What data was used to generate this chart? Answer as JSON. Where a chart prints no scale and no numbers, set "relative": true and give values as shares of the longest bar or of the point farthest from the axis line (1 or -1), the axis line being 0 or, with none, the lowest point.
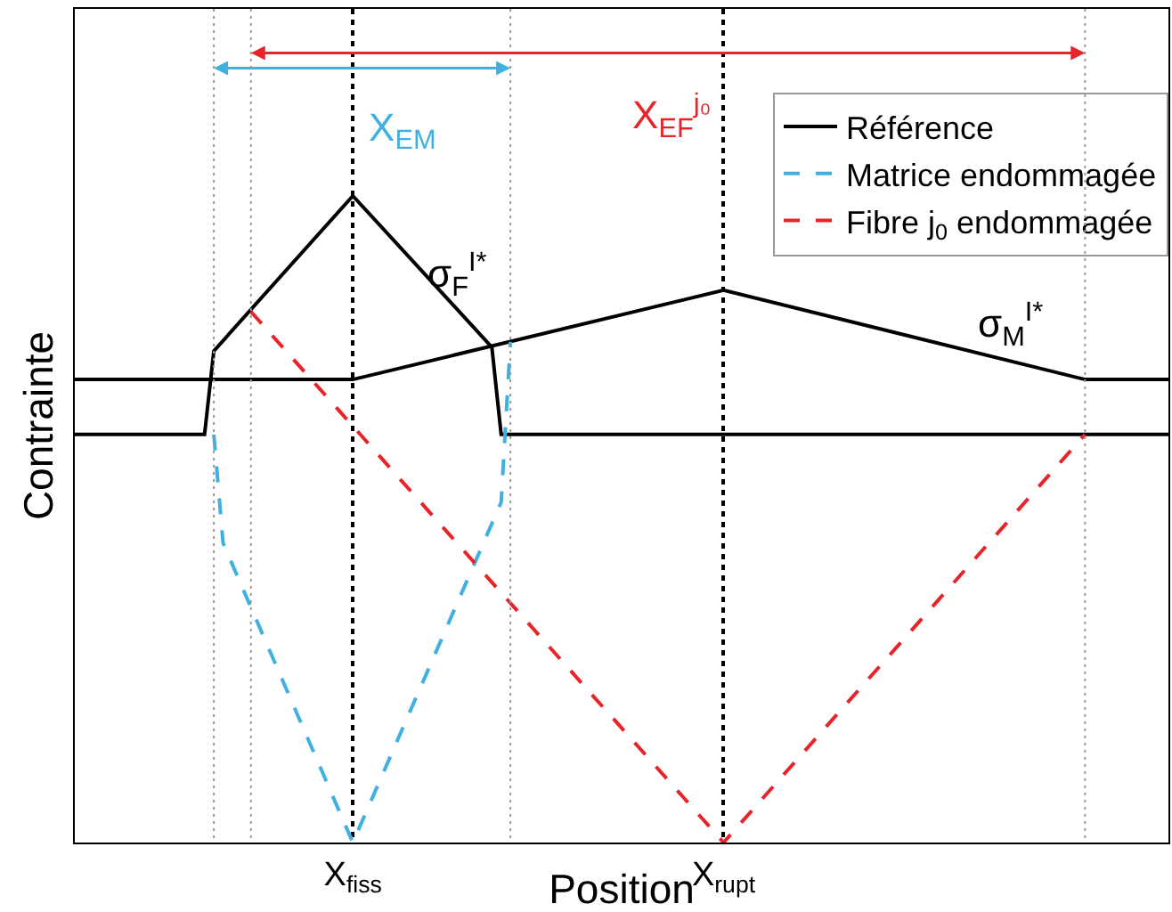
{
  "chart_data": {
    "type": "line",
    "relative": true,
    "xlabel": "Position",
    "ylabel": "Contrainte",
    "categories": [
      null,
      null,
      null,
      null,
      null,
      null,
      null,
      null,
      null,
      null,
      null,
      null,
      null,
      null,
      null,
      null,
      null,
      null,
      null,
      null,
      null,
      null,
      null,
      null,
      null,
      null,
      null,
      null,
      null,
      null,
      "X$_{fiss}$",
      null,
      null,
      null,
      null,
      null,
      null,
      null,
      null,
      null,
      null,
      null,
      null,
      null,
      null,
      null,
      null,
      null,
      null,
      null,
      null,
      null,
      null,
      null,
      null,
      null,
      null,
      null,
      null,
      null,
      null,
      null,
      null,
      null,
      null,
      null,
      null,
      null,
      null,
      null,
      "X$_{rupt}$",
      null,
      null,
      null,
      null,
      null,
      null,
      null,
      null,
      null,
      null,
      null,
      null,
      null,
      null,
      null,
      null,
      null,
      null,
      null,
      null,
      null,
      null,
      null,
      null,
      null,
      null,
      null,
      null,
      null,
      null,
      null,
      null,
      null,
      null,
      null,
      null,
      null,
      null,
      null,
      null,
      null,
      null,
      null,
      null,
      null,
      null,
      null,
      null
    ],
    "legend": "top right",
    "series": [
      {
        "name": "Référence",
        "color": "#000000",
        "line_style": "solid",
        "values": [
          0.716,
          null,
          null,
          null,
          null,
          null,
          null,
          null,
          null,
          null,
          null,
          null,
          null,
          null,
          null,
          null,
          null,
          null,
          null,
          null,
          null,
          null,
          null,
          null,
          null,
          null,
          null,
          null,
          null,
          null,
          0.716,
          null,
          null,
          null,
          null,
          null,
          null,
          null,
          null,
          null,
          null,
          null,
          null,
          null,
          null,
          null,
          null,
          null,
          null,
          null,
          null,
          null,
          null,
          null,
          null,
          null,
          null,
          null,
          null,
          null,
          null,
          null,
          null,
          null,
          null,
          null,
          null,
          null,
          null,
          null,
          0.854,
          null,
          null,
          null,
          null,
          null,
          null,
          null,
          null,
          null,
          null,
          null,
          null,
          null,
          null,
          null,
          null,
          null,
          null,
          null,
          null,
          null,
          null,
          null,
          null,
          null,
          null,
          null,
          null,
          null,
          null,
          null,
          null,
          null,
          null,
          null,
          null,
          null,
          null,
          0.716,
          null,
          null,
          null,
          null,
          null,
          null,
          null,
          null,
          0.716
        ]
      },
      {
        "color": "#000000",
        "line_style": "solid",
        "values": [
          0.631,
          null,
          null,
          null,
          null,
          null,
          null,
          null,
          null,
          null,
          null,
          null,
          null,
          null,
          0.631,
          0.76,
          null,
          null,
          null,
          null,
          null,
          null,
          null,
          null,
          null,
          null,
          null,
          null,
          null,
          null,
          1,
          null,
          null,
          null,
          null,
          null,
          null,
          null,
          null,
          null,
          null,
          null,
          null,
          null,
          null,
          0.766,
          0.631,
          null,
          null,
          null,
          null,
          null,
          null,
          null,
          null,
          null,
          null,
          null,
          null,
          null,
          null,
          null,
          null,
          null,
          null,
          null,
          null,
          null,
          null,
          null,
          null,
          null,
          null,
          null,
          null,
          null,
          null,
          null,
          null,
          null,
          null,
          null,
          null,
          null,
          null,
          null,
          null,
          null,
          null,
          null,
          null,
          null,
          null,
          null,
          null,
          null,
          null,
          null,
          null,
          null,
          null,
          null,
          null,
          null,
          null,
          null,
          null,
          null,
          null,
          null,
          null,
          null,
          null,
          null,
          null,
          null,
          null,
          null,
          0.631
        ]
      },
      {
        "name": "Matrice endommagée",
        "color": "#3fb0e0",
        "line_style": "dashed",
        "values": [
          null,
          null,
          null,
          null,
          null,
          null,
          null,
          null,
          null,
          null,
          null,
          null,
          null,
          null,
          null,
          0.631,
          0.463,
          null,
          null,
          null,
          null,
          null,
          null,
          null,
          null,
          null,
          null,
          null,
          null,
          null,
          0,
          null,
          null,
          null,
          null,
          null,
          null,
          null,
          null,
          null,
          null,
          null,
          null,
          null,
          null,
          null,
          0.526,
          0.774,
          null,
          null,
          null,
          null,
          null,
          null,
          null,
          null,
          null,
          null,
          null,
          null,
          null,
          null,
          null,
          null,
          null,
          null,
          null,
          null,
          null,
          null,
          null,
          null,
          null,
          null,
          null,
          null,
          null,
          null,
          null,
          null,
          null,
          null,
          null,
          null,
          null,
          null,
          null,
          null,
          null,
          null,
          null,
          null,
          null,
          null,
          null,
          null,
          null,
          null,
          null,
          null,
          null,
          null,
          null,
          null,
          null,
          null,
          null,
          null,
          null,
          null,
          null,
          null,
          null,
          null,
          null,
          null,
          null,
          null,
          null
        ]
      },
      {
        "name": "Fibre j$_{0}$ endommagée",
        "color": "#e8232a",
        "line_style": "dashed",
        "values": [
          null,
          null,
          null,
          null,
          null,
          null,
          null,
          null,
          null,
          null,
          null,
          null,
          null,
          null,
          null,
          null,
          null,
          null,
          null,
          0.821,
          null,
          null,
          null,
          null,
          null,
          null,
          null,
          null,
          null,
          null,
          null,
          null,
          null,
          null,
          null,
          null,
          null,
          null,
          null,
          null,
          null,
          null,
          null,
          null,
          null,
          null,
          null,
          null,
          null,
          null,
          null,
          null,
          null,
          null,
          null,
          null,
          null,
          null,
          null,
          null,
          null,
          null,
          null,
          null,
          null,
          null,
          null,
          null,
          null,
          null,
          0,
          null,
          null,
          null,
          null,
          null,
          null,
          null,
          null,
          null,
          null,
          null,
          null,
          null,
          null,
          null,
          null,
          null,
          null,
          null,
          null,
          null,
          null,
          null,
          null,
          null,
          null,
          null,
          null,
          null,
          null,
          null,
          null,
          null,
          null,
          null,
          null,
          null,
          null,
          0.631,
          null,
          null,
          null,
          null,
          null,
          null,
          null,
          null,
          null
        ]
      }
    ],
    "grid": "x",
    "annotations": [
      "X$_{EM}$",
      "X$_{EF}$$^{j₀}$",
      "σ$_{F}$$^{I*}$",
      "σ$_{M}$$^{I*}$"
    ]
  }
}
